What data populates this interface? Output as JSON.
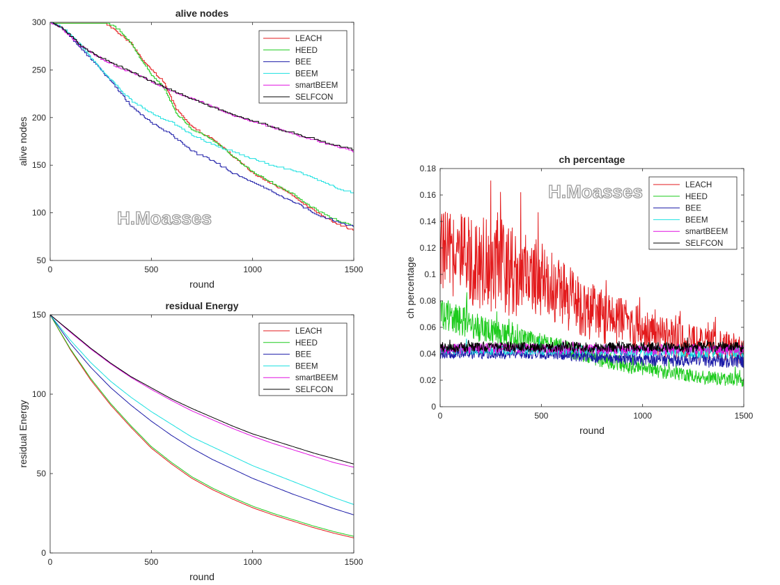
{
  "colors": {
    "LEACH": "#e31a1c",
    "HEED": "#1ecb1e",
    "BEE": "#1c1ca8",
    "BEEM": "#19e0e0",
    "smartBEEM": "#e011e0",
    "SELFCON": "#000000"
  },
  "watermark": "H.Moasses",
  "chart_data": [
    {
      "type": "line",
      "title": "alive nodes",
      "xlabel": "round",
      "ylabel": "alive nodes",
      "xlim": [
        0,
        1500
      ],
      "ylim": [
        50,
        300
      ],
      "xticks": [
        "0",
        "500",
        "1000",
        "1500"
      ],
      "yticks": [
        "50",
        "100",
        "150",
        "200",
        "250",
        "300"
      ],
      "legend_position": "top-right",
      "watermark_position": "bottom-center",
      "series": [
        {
          "name": "LEACH",
          "x": [
            0,
            100,
            200,
            270,
            330,
            400,
            450,
            500,
            560,
            620,
            700,
            800,
            900,
            1000,
            1100,
            1200,
            1300,
            1400,
            1500
          ],
          "y": [
            300,
            300,
            300,
            300,
            290,
            278,
            262,
            250,
            238,
            210,
            190,
            178,
            160,
            142,
            130,
            118,
            103,
            90,
            82
          ],
          "step": true
        },
        {
          "name": "HEED",
          "x": [
            0,
            100,
            200,
            280,
            340,
            400,
            450,
            500,
            560,
            620,
            700,
            800,
            900,
            1000,
            1100,
            1200,
            1300,
            1400,
            1500
          ],
          "y": [
            300,
            300,
            300,
            300,
            292,
            278,
            260,
            245,
            232,
            205,
            188,
            177,
            160,
            143,
            131,
            120,
            105,
            94,
            86
          ],
          "step": true
        },
        {
          "name": "BEE",
          "x": [
            0,
            50,
            100,
            150,
            200,
            250,
            300,
            350,
            400,
            450,
            500,
            600,
            700,
            800,
            900,
            1000,
            1100,
            1200,
            1300,
            1400,
            1500
          ],
          "y": [
            300,
            295,
            285,
            273,
            262,
            250,
            238,
            225,
            212,
            203,
            195,
            182,
            165,
            155,
            142,
            133,
            122,
            112,
            100,
            92,
            85
          ],
          "step": true
        },
        {
          "name": "BEEM",
          "x": [
            0,
            50,
            100,
            150,
            200,
            250,
            300,
            350,
            400,
            500,
            600,
            700,
            800,
            900,
            1000,
            1100,
            1200,
            1300,
            1400,
            1500
          ],
          "y": [
            300,
            296,
            287,
            276,
            263,
            250,
            240,
            228,
            218,
            205,
            195,
            182,
            172,
            165,
            157,
            150,
            145,
            137,
            128,
            120
          ],
          "step": true
        },
        {
          "name": "smartBEEM",
          "x": [
            0,
            50,
            100,
            150,
            200,
            250,
            300,
            350,
            400,
            500,
            600,
            700,
            800,
            900,
            1000,
            1100,
            1200,
            1300,
            1400,
            1500
          ],
          "y": [
            300,
            295,
            285,
            275,
            268,
            262,
            257,
            252,
            248,
            238,
            228,
            220,
            212,
            203,
            196,
            190,
            183,
            177,
            171,
            165
          ],
          "step": true
        },
        {
          "name": "SELFCON",
          "x": [
            0,
            50,
            100,
            150,
            200,
            250,
            300,
            350,
            400,
            500,
            600,
            700,
            800,
            900,
            1000,
            1100,
            1200,
            1300,
            1400,
            1500
          ],
          "y": [
            300,
            295,
            286,
            276,
            269,
            263,
            258,
            253,
            248,
            238,
            229,
            220,
            211,
            204,
            197,
            190,
            184,
            178,
            172,
            167
          ],
          "step": true
        }
      ]
    },
    {
      "type": "line",
      "title": "residual Energy",
      "xlabel": "round",
      "ylabel": "residual Energy",
      "xlim": [
        0,
        1500
      ],
      "ylim": [
        0,
        150
      ],
      "xticks": [
        "0",
        "500",
        "1000",
        "1500"
      ],
      "yticks": [
        "0",
        "50",
        "100",
        "150"
      ],
      "legend_position": "top-right",
      "series": [
        {
          "name": "LEACH",
          "x": [
            0,
            100,
            200,
            300,
            400,
            500,
            600,
            700,
            800,
            900,
            1000,
            1100,
            1200,
            1300,
            1400,
            1500
          ],
          "y": [
            150,
            128,
            109,
            93,
            79,
            66,
            56,
            47,
            40,
            34,
            28.5,
            24,
            20,
            16,
            12.5,
            9.5
          ]
        },
        {
          "name": "HEED",
          "x": [
            0,
            100,
            200,
            300,
            400,
            500,
            600,
            700,
            800,
            900,
            1000,
            1100,
            1200,
            1300,
            1400,
            1500
          ],
          "y": [
            150,
            128.5,
            110,
            94,
            80,
            67,
            57,
            48,
            41,
            35,
            29.5,
            25,
            21,
            17,
            13.5,
            10.5
          ]
        },
        {
          "name": "BEE",
          "x": [
            0,
            100,
            200,
            300,
            400,
            500,
            600,
            700,
            800,
            900,
            1000,
            1100,
            1200,
            1300,
            1400,
            1500
          ],
          "y": [
            150,
            132,
            117,
            104,
            93,
            83,
            74,
            66,
            59,
            53,
            47,
            42,
            37,
            32.5,
            28,
            24
          ]
        },
        {
          "name": "BEEM",
          "x": [
            0,
            100,
            200,
            300,
            400,
            500,
            600,
            700,
            800,
            900,
            1000,
            1100,
            1200,
            1300,
            1400,
            1500
          ],
          "y": [
            150,
            134,
            120,
            108,
            98,
            89,
            81,
            73,
            67,
            61,
            55,
            50,
            45,
            40,
            35,
            30.5
          ]
        },
        {
          "name": "smartBEEM",
          "x": [
            0,
            100,
            200,
            300,
            400,
            500,
            600,
            700,
            800,
            900,
            1000,
            1100,
            1200,
            1300,
            1400,
            1500
          ],
          "y": [
            150,
            139,
            128.5,
            119,
            110.5,
            103,
            96,
            89.5,
            84,
            78.5,
            73.5,
            69,
            65,
            61,
            57,
            54
          ]
        },
        {
          "name": "SELFCON",
          "x": [
            0,
            100,
            200,
            300,
            400,
            500,
            600,
            700,
            800,
            900,
            1000,
            1100,
            1200,
            1300,
            1400,
            1500
          ],
          "y": [
            150,
            139.5,
            129,
            119.5,
            111,
            104,
            97,
            91,
            85.5,
            80,
            75,
            71,
            67,
            63,
            59.5,
            56
          ]
        }
      ]
    },
    {
      "type": "line",
      "title": "ch percentage",
      "xlabel": "round",
      "ylabel": "ch percentage",
      "xlim": [
        0,
        1500
      ],
      "ylim": [
        0,
        0.18
      ],
      "xticks": [
        "0",
        "500",
        "1000",
        "1500"
      ],
      "yticks": [
        "0",
        "0.02",
        "0.04",
        "0.06",
        "0.08",
        "0.1",
        "0.12",
        "0.14",
        "0.16",
        "0.18"
      ],
      "legend_position": "top-right",
      "watermark_position": "top-center",
      "series": [
        {
          "name": "LEACH",
          "x": [
            0,
            100,
            200,
            300,
            400,
            500,
            600,
            700,
            800,
            900,
            1000,
            1100,
            1200,
            1300,
            1400,
            1500
          ],
          "y": [
            0.118,
            0.112,
            0.11,
            0.108,
            0.1,
            0.097,
            0.085,
            0.075,
            0.068,
            0.065,
            0.058,
            0.052,
            0.05,
            0.047,
            0.046,
            0.044
          ],
          "noise": [
            0.024,
            0.024,
            0.028,
            0.03,
            0.025,
            0.022,
            0.02,
            0.018,
            0.016,
            0.015,
            0.013,
            0.012,
            0.011,
            0.01,
            0.01,
            0.009
          ],
          "samples": 750
        },
        {
          "name": "HEED",
          "x": [
            0,
            100,
            200,
            300,
            400,
            500,
            600,
            700,
            800,
            900,
            1000,
            1100,
            1200,
            1300,
            1400,
            1500
          ],
          "y": [
            0.072,
            0.065,
            0.059,
            0.055,
            0.051,
            0.048,
            0.045,
            0.04,
            0.036,
            0.032,
            0.029,
            0.026,
            0.024,
            0.022,
            0.021,
            0.02
          ],
          "noise": [
            0.01,
            0.009,
            0.008,
            0.007,
            0.006,
            0.006,
            0.005,
            0.005,
            0.005,
            0.005,
            0.004,
            0.004,
            0.004,
            0.004,
            0.004,
            0.004
          ],
          "samples": 750
        },
        {
          "name": "BEE",
          "x": [
            0,
            500,
            1000,
            1500
          ],
          "y": [
            0.04,
            0.04,
            0.036,
            0.034
          ],
          "noise": [
            0.003,
            0.003,
            0.004,
            0.004
          ],
          "samples": 750
        },
        {
          "name": "BEEM",
          "x": [
            0,
            500,
            1000,
            1500
          ],
          "y": [
            0.043,
            0.043,
            0.042,
            0.041
          ],
          "noise": [
            0.003,
            0.003,
            0.003,
            0.004
          ],
          "samples": 750
        },
        {
          "name": "smartBEEM",
          "x": [
            0,
            500,
            1000,
            1500
          ],
          "y": [
            0.044,
            0.044,
            0.043,
            0.043
          ],
          "noise": [
            0.003,
            0.003,
            0.003,
            0.003
          ],
          "samples": 750
        },
        {
          "name": "SELFCON",
          "x": [
            0,
            500,
            1000,
            1500
          ],
          "y": [
            0.045,
            0.045,
            0.045,
            0.045
          ],
          "noise": [
            0.003,
            0.003,
            0.003,
            0.003
          ],
          "samples": 750
        }
      ]
    }
  ]
}
